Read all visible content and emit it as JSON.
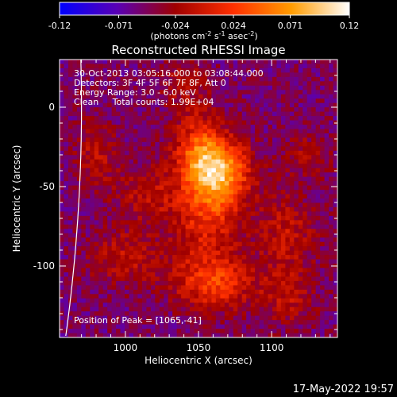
{
  "chart_data": {
    "type": "heatmap",
    "title": "Reconstructed RHESSI Image",
    "xlabel": "Heliocentric X (arcsec)",
    "ylabel": "Heliocentric Y (arcsec)",
    "xlim": [
      955,
      1145
    ],
    "ylim": [
      -145,
      30
    ],
    "x_ticks": [
      1000,
      1050,
      1100
    ],
    "y_ticks": [
      0,
      -50,
      -100
    ],
    "colorbar": {
      "min": -0.12,
      "max": 0.12,
      "tick_values": [
        -0.12,
        -0.071,
        -0.024,
        0.024,
        0.071,
        0.12
      ],
      "tick_labels": [
        "-0.12",
        "-0.071",
        "-0.024",
        "0.024",
        "0.071",
        "0.12"
      ],
      "unit_label": "(photons cm-2 s-1 asec-2)",
      "colors": [
        "#0000ff",
        "#5a00b4",
        "#a00000",
        "#ff3000",
        "#ff9c00",
        "#ffffff"
      ]
    },
    "annotations": [
      "30-Oct-2013 03:05:16.000 to 03:08:44.000",
      "Detectors: 3F 4F 5F 6F 7F 8F, Att 0",
      "Energy Range: 3.0 - 6.0 keV",
      "Clean     Total counts: 1.99E+04"
    ],
    "peak_label": "Position of Peak = [1065,-41]",
    "peak": [
      1065,
      -41
    ],
    "sources": [
      {
        "x": 1065,
        "y": -41,
        "amp": 0.115,
        "sx": 14,
        "sy": 14
      },
      {
        "x": 1050,
        "y": -28,
        "amp": 0.075,
        "sx": 12,
        "sy": 16
      },
      {
        "x": 1055,
        "y": -70,
        "amp": 0.06,
        "sx": 16,
        "sy": 18
      },
      {
        "x": 1060,
        "y": -110,
        "amp": 0.075,
        "sx": 18,
        "sy": 12
      },
      {
        "x": 1015,
        "y": -55,
        "amp": 0.04,
        "sx": 14,
        "sy": 12
      },
      {
        "x": 1000,
        "y": -95,
        "amp": 0.04,
        "sx": 18,
        "sy": 12
      },
      {
        "x": 1110,
        "y": -80,
        "amp": 0.04,
        "sx": 14,
        "sy": 18
      },
      {
        "x": 1110,
        "y": -120,
        "amp": 0.035,
        "sx": 14,
        "sy": 12
      },
      {
        "x": 980,
        "y": -30,
        "amp": 0.035,
        "sx": 10,
        "sy": 16
      },
      {
        "x": 1125,
        "y": -30,
        "amp": 0.025,
        "sx": 12,
        "sy": 10
      },
      {
        "x": 1040,
        "y": 15,
        "amp": 0.03,
        "sx": 12,
        "sy": 12
      }
    ],
    "background": -0.05
  },
  "footer_date": "17-May-2022 19:57"
}
